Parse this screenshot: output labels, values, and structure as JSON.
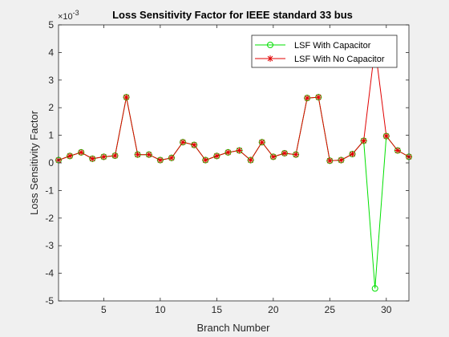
{
  "chart_data": {
    "type": "line",
    "title": "Loss Sensitivity Factor for IEEE standard 33 bus",
    "xlabel": "Branch Number",
    "ylabel": "Loss Sensitivity Factor",
    "y_multiplier": "×10",
    "y_exponent": "-3",
    "xlim": [
      1,
      32
    ],
    "ylim": [
      -5,
      5
    ],
    "xticks": [
      5,
      10,
      15,
      20,
      25,
      30
    ],
    "yticks": [
      -5,
      -4,
      -3,
      -2,
      -1,
      0,
      1,
      2,
      3,
      4,
      5
    ],
    "grid": false,
    "legend_position": "top-right",
    "x": [
      1,
      2,
      3,
      4,
      5,
      6,
      7,
      8,
      9,
      10,
      11,
      12,
      13,
      14,
      15,
      16,
      17,
      18,
      19,
      20,
      21,
      22,
      23,
      24,
      25,
      26,
      27,
      28,
      29,
      30,
      31,
      32
    ],
    "series": [
      {
        "name": "LSF With Capacitor",
        "color": "#00e000",
        "marker": "circle",
        "values": [
          0.1,
          0.25,
          0.38,
          0.15,
          0.22,
          0.26,
          2.38,
          0.3,
          0.3,
          0.1,
          0.18,
          0.75,
          0.65,
          0.1,
          0.25,
          0.38,
          0.45,
          0.1,
          0.75,
          0.22,
          0.35,
          0.3,
          2.35,
          2.38,
          0.08,
          0.1,
          0.32,
          0.8,
          -4.55,
          0.97,
          0.45,
          0.22
        ]
      },
      {
        "name": "LSF With No Capacitor",
        "color": "#e00000",
        "marker": "asterisk",
        "values": [
          0.1,
          0.25,
          0.38,
          0.15,
          0.22,
          0.26,
          2.38,
          0.3,
          0.3,
          0.1,
          0.18,
          0.75,
          0.65,
          0.1,
          0.25,
          0.38,
          0.45,
          0.1,
          0.75,
          0.22,
          0.35,
          0.3,
          2.35,
          2.38,
          0.08,
          0.1,
          0.32,
          0.8,
          4.2,
          0.97,
          0.45,
          0.22
        ]
      }
    ]
  }
}
